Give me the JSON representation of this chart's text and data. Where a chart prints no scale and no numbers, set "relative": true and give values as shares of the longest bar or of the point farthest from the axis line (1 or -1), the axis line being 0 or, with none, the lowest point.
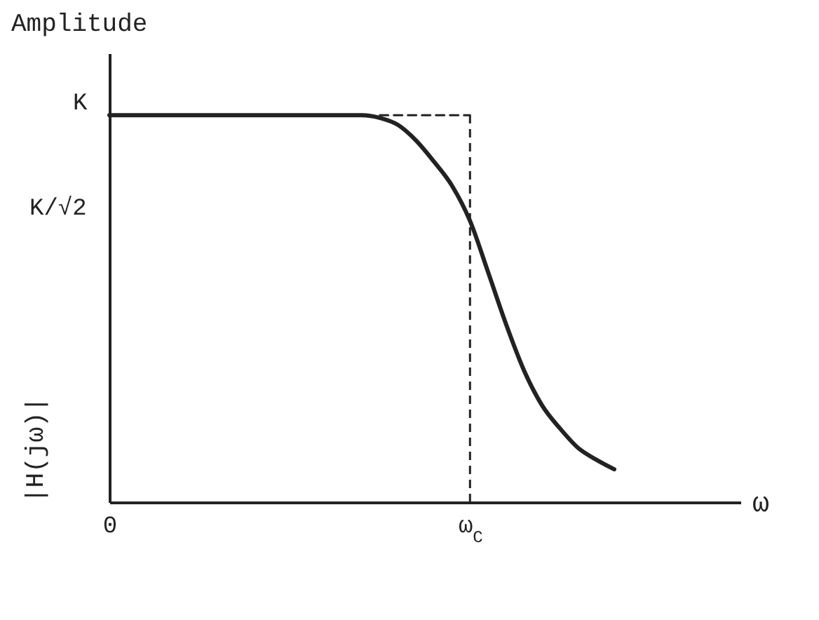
{
  "chart_data": {
    "type": "line",
    "title": "Amplitude",
    "xlabel": "ω",
    "ylabel": "|H(jω)|",
    "relative": true,
    "grid": false,
    "categories": [
      "0",
      null,
      null,
      null,
      null,
      null,
      null,
      null,
      null,
      null,
      null,
      null,
      null,
      null,
      null,
      null,
      null,
      null,
      null,
      null,
      "ω$_{C}$",
      null,
      null,
      null,
      null,
      null,
      null,
      null,
      null,
      null,
      null,
      null,
      null,
      null,
      null,
      null
    ],
    "annotations": [
      "K",
      "K/√2"
    ],
    "ref_lines": [
      {
        "axis": "x",
        "value": "ω$_{C}$",
        "line_style": "dashed",
        "color": "#222222"
      }
    ],
    "series": [
      {
        "color": "#222222",
        "line_style": "solid",
        "values": [
          1,
          1,
          1,
          1,
          1,
          1,
          1,
          1,
          1,
          1,
          1,
          1,
          1,
          1,
          1,
          0.993,
          0.975,
          0.935,
          0.88,
          0.818,
          0.727,
          0.595,
          0.46,
          0.34,
          0.25,
          0.19,
          0.14,
          0.11,
          0.085,
          null,
          null,
          null,
          null,
          null,
          null,
          null
        ]
      },
      {
        "color": "#222222",
        "line_style": "dashed",
        "values": [
          null,
          null,
          null,
          null,
          null,
          null,
          null,
          null,
          null,
          null,
          null,
          null,
          null,
          null,
          null,
          1,
          1,
          1,
          1,
          1,
          1,
          null,
          null,
          null,
          null,
          null,
          null,
          null,
          null,
          null,
          null,
          null,
          null,
          null,
          null,
          null
        ]
      }
    ]
  }
}
